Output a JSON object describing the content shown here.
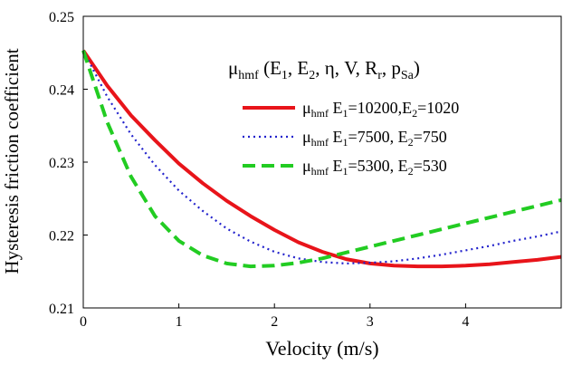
{
  "chart_data": {
    "type": "line",
    "title": "",
    "xlabel": "Velocity (m/s)",
    "ylabel": "Hysteresis friction coefficient",
    "xlim": [
      0,
      5
    ],
    "ylim": [
      0.21,
      0.25
    ],
    "x_ticks": [
      "0",
      "1",
      "2",
      "3",
      "4"
    ],
    "y_ticks": [
      "0.21",
      "0.22",
      "0.23",
      "0.24",
      "0.25"
    ],
    "grid": false,
    "legend_position": "top-right",
    "legend_header": {
      "symbol": "μ",
      "sub": "hmf",
      "args_prefix": " (E",
      "args_mid1": ", E",
      "args_mid2": ", η, V, R",
      "args_sub_r": "r",
      "args_mid3": ", p",
      "args_sub_sa": "Sa",
      "args_suffix": ")"
    },
    "series": [
      {
        "name": "μhmf E1=10200,E2=1020",
        "legend_parts": [
          "μ",
          "hmf",
          " E",
          "1",
          "=10200,E",
          "2",
          "=1020"
        ],
        "color": "#e8141a",
        "style": "solid",
        "x": [
          0,
          0.25,
          0.5,
          0.75,
          1,
          1.25,
          1.5,
          1.75,
          2,
          2.25,
          2.5,
          2.75,
          3,
          3.25,
          3.5,
          3.75,
          4,
          4.25,
          4.5,
          4.75,
          5
        ],
        "y": [
          0.2453,
          0.2405,
          0.2364,
          0.233,
          0.2298,
          0.2271,
          0.2247,
          0.2226,
          0.2207,
          0.219,
          0.2177,
          0.2167,
          0.2161,
          0.2158,
          0.2157,
          0.2157,
          0.2158,
          0.216,
          0.2163,
          0.2166,
          0.217
        ]
      },
      {
        "name": "μhmf E1=7500, E2=750",
        "legend_parts": [
          "μ",
          "hmf",
          " E",
          "1",
          "=7500,  E",
          "2",
          "=750"
        ],
        "color": "#2222cc",
        "style": "dotted",
        "x": [
          0,
          0.25,
          0.5,
          0.75,
          1,
          1.25,
          1.5,
          1.75,
          2,
          2.25,
          2.5,
          2.75,
          3,
          3.25,
          3.5,
          3.75,
          4,
          4.25,
          4.5,
          4.75,
          5
        ],
        "y": [
          0.2453,
          0.239,
          0.2338,
          0.2296,
          0.2261,
          0.2233,
          0.2209,
          0.2191,
          0.2177,
          0.2168,
          0.2163,
          0.2161,
          0.2162,
          0.2164,
          0.2168,
          0.2173,
          0.2179,
          0.2185,
          0.2192,
          0.2198,
          0.2205
        ]
      },
      {
        "name": "μhmf E1=5300,  E2=530",
        "legend_parts": [
          "μ",
          "hmf",
          " E",
          "1",
          "=5300,  E",
          "2",
          "=530"
        ],
        "color": "#22cc22",
        "style": "dashed",
        "x": [
          0,
          0.25,
          0.5,
          0.75,
          1,
          1.25,
          1.5,
          1.75,
          2,
          2.25,
          2.5,
          2.75,
          3,
          3.25,
          3.5,
          3.75,
          4,
          4.25,
          4.5,
          4.75,
          5
        ],
        "y": [
          0.2453,
          0.2355,
          0.228,
          0.2226,
          0.2192,
          0.2172,
          0.2161,
          0.2157,
          0.2158,
          0.2162,
          0.2168,
          0.2176,
          0.2184,
          0.2192,
          0.22,
          0.2208,
          0.2216,
          0.2224,
          0.2232,
          0.224,
          0.2248
        ]
      }
    ]
  }
}
